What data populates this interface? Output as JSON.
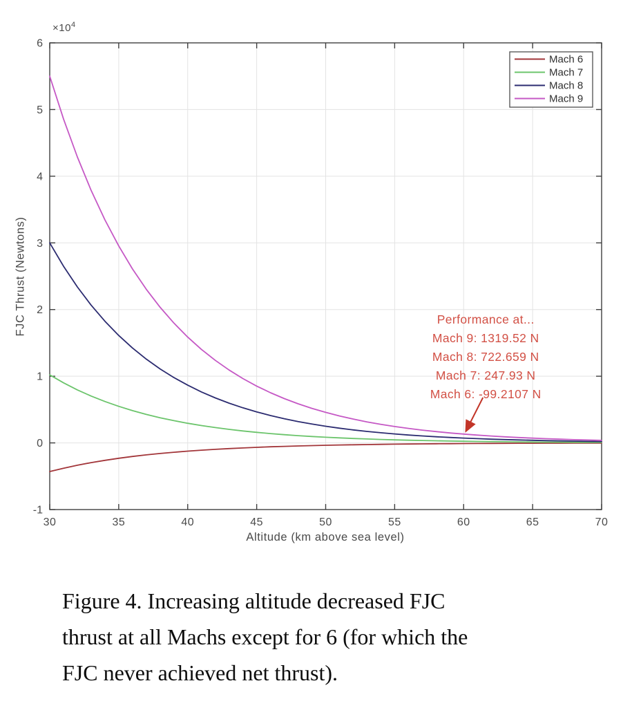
{
  "chart": {
    "exponent_base": "×10",
    "exponent_power": "4"
  },
  "chart_data": {
    "type": "line",
    "title": "",
    "xlabel": "Altitude (km above sea level)",
    "ylabel": "FJC Thrust (Newtons)",
    "xlim": [
      30,
      70
    ],
    "ylim": [
      -10000,
      60000
    ],
    "x_ticks": [
      30,
      35,
      40,
      45,
      50,
      55,
      60,
      65,
      70
    ],
    "y_ticks": [
      -1,
      0,
      1,
      2,
      3,
      4,
      5,
      6
    ],
    "y_tick_multiplier": 10000,
    "grid": true,
    "legend_position": "top-right",
    "x": [
      30,
      31,
      32,
      33,
      34,
      35,
      36,
      37,
      38,
      39,
      40,
      41,
      42,
      43,
      44,
      45,
      46,
      47,
      48,
      49,
      50,
      51,
      52,
      53,
      54,
      55,
      56,
      57,
      58,
      59,
      60,
      61,
      62,
      63,
      64,
      65,
      66,
      67,
      68,
      69,
      70
    ],
    "series": [
      {
        "name": "Mach 6",
        "color": "#A23539",
        "values": [
          -4300,
          -3797,
          -3353,
          -2961,
          -2615,
          -2310,
          -2040,
          -1801,
          -1591,
          -1405,
          -1241,
          -1096,
          -968,
          -854,
          -755,
          -666,
          -588,
          -520,
          -459,
          -405,
          -358,
          -316,
          -279,
          -247,
          -218,
          -192,
          -170,
          -150,
          -132,
          -117,
          -99,
          -88,
          -77,
          -68,
          -60,
          -53,
          -47,
          -42,
          -37,
          -32,
          -29
        ]
      },
      {
        "name": "Mach 7",
        "color": "#6BC46B",
        "values": [
          10200,
          9008,
          7955,
          7025,
          6204,
          5479,
          4839,
          4273,
          3773,
          3332,
          2943,
          2599,
          2295,
          2027,
          1790,
          1581,
          1396,
          1233,
          1089,
          961,
          849,
          750,
          662,
          585,
          516,
          456,
          403,
          356,
          314,
          277,
          248,
          216,
          191,
          169,
          149,
          131,
          116,
          102,
          90,
          80,
          71
        ]
      },
      {
        "name": "Mach 8",
        "color": "#2B2B70",
        "values": [
          30000,
          26493,
          23397,
          20662,
          18247,
          16114,
          14231,
          12567,
          11098,
          9801,
          8655,
          7644,
          6750,
          5961,
          5264,
          4649,
          4106,
          3626,
          3202,
          2828,
          2497,
          2205,
          1947,
          1720,
          1519,
          1341,
          1184,
          1046,
          924,
          816,
          723,
          636,
          562,
          496,
          438,
          387,
          341,
          301,
          266,
          235,
          208
        ]
      },
      {
        "name": "Mach 9",
        "color": "#C558C5",
        "values": [
          55000,
          48571,
          42894,
          37880,
          33453,
          29543,
          26090,
          23040,
          20347,
          17969,
          15868,
          14013,
          12375,
          10929,
          9651,
          8523,
          7527,
          6647,
          5870,
          5184,
          4578,
          4043,
          3570,
          3153,
          2784,
          2459,
          2171,
          1917,
          1693,
          1495,
          1320,
          1166,
          1030,
          909,
          803,
          709,
          626,
          553,
          488,
          431,
          381
        ]
      }
    ],
    "annotation": {
      "lines": [
        "Performance at...",
        "Mach 9: 1319.52 N",
        "Mach 8: 722.659 N",
        "Mach 7: 247.93 N",
        "Mach 6: -99.2107 N"
      ],
      "color": "#D25045",
      "arrow_color": "#C23528",
      "position": {
        "x": 61.6,
        "y": 18500
      },
      "arrow": {
        "x1": 61.4,
        "y1": 6800,
        "x2": 60.2,
        "y2": 1900
      }
    },
    "colors": {
      "grid": "#E3E3E3",
      "axis": "#3E3E3E",
      "tick_label": "#4A4A4A",
      "legend_text": "#303030",
      "legend_border": "#5A5A5A"
    }
  },
  "caption": {
    "lines": [
      "Figure 4. Increasing altitude decreased FJC",
      "thrust at all Machs except for 6 (for which the",
      "FJC never achieved net thrust)."
    ]
  }
}
